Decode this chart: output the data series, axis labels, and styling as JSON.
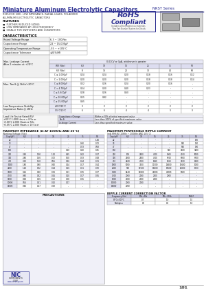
{
  "title": "Miniature Aluminum Electrolytic Capacitors",
  "series": "NRSY Series",
  "subtitle1": "REDUCED SIZE, LOW IMPEDANCE, RADIAL LEADS, POLARIZED",
  "subtitle2": "ALUMINUM ELECTROLYTIC CAPACITORS",
  "features_title": "FEATURES",
  "features": [
    "■  FURTHER REDUCED SIZING",
    "■  LOW IMPEDANCE AT HIGH FREQUENCY",
    "■  IDEALLY FOR SWITCHERS AND CONVERTERS"
  ],
  "rohs_line1": "RoHS",
  "rohs_line2": "Compliant",
  "rohs_line3": "Includes all homogeneous materials",
  "rohs_note": "*See Part Number System for Details",
  "char_title": "CHARACTERISTICS",
  "char_simple_rows": [
    [
      "Rated Voltage Range",
      "6.3 ~ 100Vdc"
    ],
    [
      "Capacitance Range",
      "22 ~ 15,000μF"
    ],
    [
      "Operating Temperature Range",
      "-55 ~ +105°C"
    ],
    [
      "Capacitance Tolerance",
      "±20%(M)"
    ]
  ],
  "leakage_label1": "Max. Leakage Current",
  "leakage_label2": "After 2 minutes at +20°C",
  "leakage_note": "0.01CV or 3μA, whichever is greater",
  "leakage_header": [
    "WV (Vdc)",
    "6.3",
    "10",
    "16",
    "25",
    "35",
    "50"
  ],
  "leakage_rows": [
    [
      "6V (Vdc)",
      "8",
      "14",
      "20",
      "30",
      "44",
      "68"
    ],
    [
      "C ≤ 1,000μF",
      "0.24",
      "0.24",
      "0.20",
      "0.18",
      "0.16",
      "0.12"
    ],
    [
      "C > 2,000μF",
      "0.20",
      "0.20",
      "0.20",
      "0.18",
      "0.18",
      "0.14"
    ]
  ],
  "tan_label": "Max. Tan δ @ 1kHz/+20°C",
  "tan_rows": [
    [
      "C ≤ 8,000μF",
      "0.52",
      "0.26",
      "0.24",
      "0.20",
      "0.16",
      "-"
    ],
    [
      "C > 4,700μF",
      "0.54",
      "0.30",
      "0.40",
      "0.23",
      "-",
      "-"
    ],
    [
      "C ≤ 5,600μF",
      "0.28",
      "0.26",
      "0.60",
      "-",
      "-",
      "-"
    ],
    [
      "C ≥ 10,000μF",
      "0.55",
      "0.82",
      "-",
      "-",
      "-",
      "-"
    ],
    [
      "C ≥ 15,000μF",
      "0.65",
      "-",
      "-",
      "-",
      "-",
      "-"
    ]
  ],
  "stab_label1": "Low Temperature Stability",
  "stab_label2": "Impedance Ratio @ 1KHz",
  "stab_rows": [
    [
      "-40°C/20°C",
      "3",
      "2",
      "2",
      "2",
      "2",
      "2"
    ],
    [
      "-55°C/20°C",
      "6",
      "6",
      "4",
      "4",
      "3",
      "3"
    ]
  ],
  "load_label1": "Load Life Test at Rated W.V.",
  "load_label2": "+85°C 1,000 Hours = 8.5s or",
  "load_label3": "+100°C 2,000 Hours or 50s",
  "load_label4": "+105°C 2,000 Hours = 10.5s or",
  "load_results": [
    [
      "Capacitance Change",
      "Within ±20% of initial measured value"
    ],
    [
      "Tan δ",
      "Less than 200% of specified maximum value"
    ],
    [
      "Leakage Current",
      "Less than specified maximum value"
    ]
  ],
  "precautions_title": "PRECAUTIONS",
  "imp_title": "MAXIMUM IMPEDANCE (Ω AT 100KHz AND 20°C)",
  "imp_subtitle": "Working Voltage (Vdc)",
  "imp_col_headers": [
    "Cap (pF)",
    "6.3",
    "10",
    "16",
    "25",
    "35",
    "50"
  ],
  "imp_rows": [
    [
      "22",
      "-",
      "-",
      "-",
      "-",
      "-",
      "1.40"
    ],
    [
      "33",
      "-",
      "-",
      "-",
      "-",
      "0.90",
      "0.72"
    ],
    [
      "47",
      "-",
      "-",
      "-",
      "-",
      "0.73",
      "0.58"
    ],
    [
      "100",
      "-",
      "-",
      "-",
      "0.90",
      "0.60",
      "0.45"
    ],
    [
      "220",
      "2.90",
      "1.90",
      "1.10",
      "0.65",
      "0.42",
      "0.37"
    ],
    [
      "330",
      "2.80",
      "1.60",
      "0.72",
      "0.50",
      "0.33",
      "0.28"
    ],
    [
      "470",
      "2.50",
      "1.20",
      "0.56",
      "0.36",
      "0.24",
      "0.21"
    ],
    [
      "1000",
      "1.80",
      "0.80",
      "0.40",
      "0.24",
      "0.17",
      "0.14"
    ],
    [
      "2200",
      "1.20",
      "0.52",
      "0.24",
      "0.16",
      "0.11",
      "0.09"
    ],
    [
      "3300",
      "0.96",
      "0.40",
      "0.19",
      "0.13",
      "0.09",
      "0.07"
    ],
    [
      "4700",
      "0.80",
      "0.32",
      "0.16",
      "0.10",
      "0.07",
      "0.06"
    ],
    [
      "6800",
      "0.68",
      "0.26",
      "0.13",
      "0.08",
      "0.06",
      "-"
    ],
    [
      "10000",
      "0.56",
      "0.21",
      "0.10",
      "0.07",
      "-",
      "-"
    ],
    [
      "15000",
      "0.46",
      "0.17",
      "0.08",
      "-",
      "-",
      "-"
    ]
  ],
  "ripple_title": "MAXIMUM PERMISSIBLE RIPPLE CURRENT",
  "ripple_subtitle": "(mA RMS AT 10KHz ~ 200KHz AND 105°C)",
  "ripple_col_headers": [
    "Cap (pF)",
    "6.3",
    "10",
    "16",
    "25",
    "35",
    "50"
  ],
  "ripple_rows": [
    [
      "22",
      "-",
      "-",
      "-",
      "-",
      "-",
      "100"
    ],
    [
      "33",
      "-",
      "-",
      "-",
      "-",
      "560",
      "130"
    ],
    [
      "47",
      "-",
      "-",
      "-",
      "-",
      "560",
      "190"
    ],
    [
      "100",
      "-",
      "-",
      "-",
      "160",
      "2600",
      "3200"
    ],
    [
      "220",
      "100",
      "2600",
      "4100",
      "3000",
      "4100",
      "5000"
    ],
    [
      "330",
      "2600",
      "2600",
      "4700",
      "6700",
      "6600",
      "6700"
    ],
    [
      "470",
      "2400",
      "4700",
      "5460",
      "5560",
      "7100",
      "8000"
    ],
    [
      "1000",
      "5000",
      "7100",
      "11500",
      "14600",
      "15600",
      "1000"
    ],
    [
      "2200",
      "960",
      "11500",
      "18400",
      "18500",
      "12000",
      "1750"
    ],
    [
      "3300",
      "1440",
      "16800",
      "22000",
      "21000",
      "1900",
      "-"
    ],
    [
      "4700",
      "2000",
      "2000",
      "2000",
      "2000",
      "-",
      "-"
    ],
    [
      "6800",
      "2000",
      "2000",
      "2000",
      "-",
      "-",
      "-"
    ],
    [
      "10000",
      "2000",
      "2000",
      "-",
      "-",
      "-",
      "-"
    ],
    [
      "15000",
      "2000",
      "-",
      "-",
      "-",
      "-",
      "-"
    ]
  ],
  "corr_title": "RIPPLE CURRENT CORRECTION FACTOR",
  "corr_headers": [
    "Frequency (Hz)",
    "10k~40k",
    "50k~200k",
    "100kF"
  ],
  "corr_rows": [
    [
      "85°C×105°C",
      "0.7",
      "1.0",
      "1.5"
    ],
    [
      "Multiplier",
      "0.5",
      "0.9",
      "1.0"
    ]
  ],
  "page_num": "101",
  "hc": "#2e3192",
  "tc": "#000000",
  "header_bg": "#d0d0e8",
  "row_bg1": "#f0f0f8",
  "row_bg2": "#ffffff",
  "border_c": "#999999"
}
